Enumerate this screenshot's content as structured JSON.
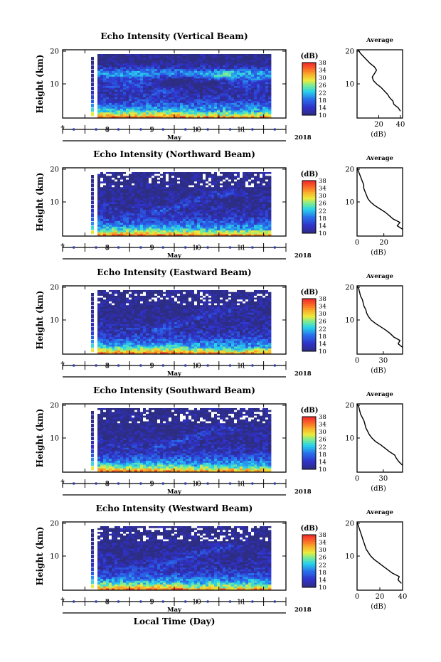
{
  "figure": {
    "year_label": "2018",
    "xlabel": "Local Time (Day)"
  },
  "chart_data": [
    {
      "type": "heatmap",
      "title": "Echo Intensity (Vertical Beam)",
      "ylabel": "Height (km)",
      "y_ticks": [
        "20",
        "10"
      ],
      "ylim": [
        0,
        20
      ],
      "x_ticks": [
        "7",
        "8",
        "9",
        "10",
        "11"
      ],
      "month_label": "May",
      "xlim": [
        6.5,
        11.5
      ],
      "colorbar": {
        "label": "(dB)",
        "ticks": [
          "38",
          "34",
          "30",
          "26",
          "22",
          "18",
          "14",
          "10"
        ],
        "range": [
          10,
          38
        ]
      },
      "average": {
        "title": "Average",
        "xlabel": "(dB)",
        "x_ticks": [
          "20",
          "40"
        ],
        "xlim": [
          0,
          42
        ],
        "y_ticks": [
          "20",
          "10"
        ],
        "profile": [
          [
            40,
            2
          ],
          [
            38,
            3
          ],
          [
            34,
            4
          ],
          [
            33,
            5
          ],
          [
            30,
            6
          ],
          [
            28,
            7
          ],
          [
            25,
            8
          ],
          [
            22,
            9
          ],
          [
            18,
            10
          ],
          [
            15,
            11
          ],
          [
            14,
            12
          ],
          [
            16,
            13
          ],
          [
            18,
            14
          ],
          [
            16,
            15
          ],
          [
            12,
            16
          ],
          [
            9,
            17
          ],
          [
            6,
            18
          ],
          [
            3,
            19
          ],
          [
            1,
            20
          ]
        ]
      }
    },
    {
      "type": "heatmap",
      "title": "Echo Intensity (Northward Beam)",
      "ylabel": "Height (km)",
      "y_ticks": [
        "20",
        "10"
      ],
      "ylim": [
        0,
        20
      ],
      "x_ticks": [
        "7",
        "8",
        "9",
        "10",
        "11"
      ],
      "month_label": "May",
      "xlim": [
        6.5,
        11.5
      ],
      "colorbar": {
        "label": "(dB)",
        "ticks": [
          "38",
          "34",
          "30",
          "26",
          "22",
          "18",
          "14",
          "10"
        ],
        "range": [
          10,
          38
        ]
      },
      "average": {
        "title": "Average",
        "xlabel": "(dB)",
        "x_ticks": [
          "0",
          "20"
        ],
        "xlim": [
          0,
          34
        ],
        "y_ticks": [
          "20",
          "10"
        ],
        "profile": [
          [
            34,
            2
          ],
          [
            30,
            3
          ],
          [
            32,
            4
          ],
          [
            27,
            5
          ],
          [
            24,
            6
          ],
          [
            21,
            7
          ],
          [
            17,
            8
          ],
          [
            13,
            9
          ],
          [
            10,
            10
          ],
          [
            8,
            11
          ],
          [
            7,
            12
          ],
          [
            6,
            13
          ],
          [
            5,
            14
          ],
          [
            5,
            15
          ],
          [
            4,
            16
          ],
          [
            3,
            17
          ],
          [
            2,
            18
          ],
          [
            1,
            19
          ],
          [
            0,
            20
          ]
        ]
      }
    },
    {
      "type": "heatmap",
      "title": "Echo Intensity (Eastward Beam)",
      "ylabel": "Height (km)",
      "y_ticks": [
        "20",
        "10"
      ],
      "ylim": [
        0,
        20
      ],
      "x_ticks": [
        "7",
        "8",
        "9",
        "10",
        "11"
      ],
      "month_label": "May",
      "xlim": [
        6.5,
        11.5
      ],
      "colorbar": {
        "label": "(dB)",
        "ticks": [
          "38",
          "34",
          "30",
          "26",
          "22",
          "18",
          "14",
          "10"
        ],
        "range": [
          10,
          38
        ]
      },
      "average": {
        "title": "Average",
        "xlabel": "(dB)",
        "x_ticks": [
          "0",
          "30"
        ],
        "xlim": [
          0,
          52
        ],
        "y_ticks": [
          "20",
          "10"
        ],
        "profile": [
          [
            52,
            2
          ],
          [
            47,
            3
          ],
          [
            49,
            4
          ],
          [
            42,
            5
          ],
          [
            38,
            6
          ],
          [
            33,
            7
          ],
          [
            27,
            8
          ],
          [
            21,
            9
          ],
          [
            16,
            10
          ],
          [
            13,
            11
          ],
          [
            11,
            12
          ],
          [
            10,
            13
          ],
          [
            8,
            14
          ],
          [
            7,
            15
          ],
          [
            6,
            16
          ],
          [
            4,
            17
          ],
          [
            3,
            18
          ],
          [
            2,
            19
          ],
          [
            0,
            20
          ]
        ]
      }
    },
    {
      "type": "heatmap",
      "title": "Echo Intensity (Southward Beam)",
      "ylabel": "Height (km)",
      "y_ticks": [
        "20",
        "10"
      ],
      "ylim": [
        0,
        20
      ],
      "x_ticks": [
        "7",
        "8",
        "9",
        "10",
        "11"
      ],
      "month_label": "May",
      "xlim": [
        6.5,
        11.5
      ],
      "colorbar": {
        "label": "(dB)",
        "ticks": [
          "38",
          "34",
          "30",
          "26",
          "22",
          "18",
          "14",
          "10"
        ],
        "range": [
          10,
          38
        ]
      },
      "average": {
        "title": "Average",
        "xlabel": "(dB)",
        "x_ticks": [
          "0",
          "30"
        ],
        "xlim": [
          0,
          52
        ],
        "y_ticks": [
          "20",
          "10"
        ],
        "profile": [
          [
            52,
            2
          ],
          [
            48,
            3
          ],
          [
            45,
            4
          ],
          [
            43,
            5
          ],
          [
            37,
            6
          ],
          [
            32,
            7
          ],
          [
            27,
            8
          ],
          [
            21,
            9
          ],
          [
            17,
            10
          ],
          [
            14,
            11
          ],
          [
            12,
            12
          ],
          [
            10,
            13
          ],
          [
            9,
            14
          ],
          [
            8,
            15
          ],
          [
            6,
            16
          ],
          [
            4,
            17
          ],
          [
            3,
            18
          ],
          [
            2,
            19
          ],
          [
            0,
            20
          ]
        ]
      }
    },
    {
      "type": "heatmap",
      "title": "Echo Intensity (Westward Beam)",
      "ylabel": "Height (km)",
      "y_ticks": [
        "20",
        "10"
      ],
      "ylim": [
        0,
        20
      ],
      "x_ticks": [
        "7",
        "8",
        "9",
        "10",
        "11"
      ],
      "month_label": "May",
      "xlim": [
        6.5,
        11.5
      ],
      "colorbar": {
        "label": "(dB)",
        "ticks": [
          "38",
          "34",
          "30",
          "26",
          "22",
          "18",
          "14",
          "10"
        ],
        "range": [
          10,
          38
        ]
      },
      "average": {
        "title": "Average",
        "xlabel": "(dB)",
        "x_ticks": [
          "0",
          "20",
          "40"
        ],
        "xlim": [
          0,
          40
        ],
        "y_ticks": [
          "20",
          "10"
        ],
        "profile": [
          [
            39,
            2
          ],
          [
            36,
            3
          ],
          [
            37,
            4
          ],
          [
            31,
            5
          ],
          [
            27,
            6
          ],
          [
            23,
            7
          ],
          [
            19,
            8
          ],
          [
            15,
            9
          ],
          [
            12,
            10
          ],
          [
            10,
            11
          ],
          [
            8,
            12
          ],
          [
            7,
            13
          ],
          [
            6,
            14
          ],
          [
            5,
            15
          ],
          [
            4,
            16
          ],
          [
            3,
            17
          ],
          [
            2,
            18
          ],
          [
            1,
            19
          ],
          [
            0,
            20
          ]
        ]
      }
    }
  ]
}
